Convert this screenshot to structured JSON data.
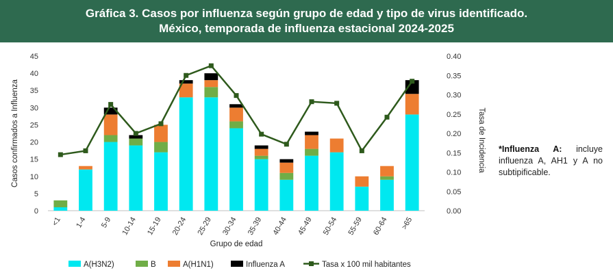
{
  "header": {
    "title_line1": "Gráfica 3. Casos por influenza según grupo de edad y tipo de virus identificado.",
    "title_line2": "México, temporada de influenza estacional 2024-2025"
  },
  "note": {
    "bold": "*Influenza A:",
    "text": " incluye influenza A, AH1 y A no subtipificable."
  },
  "colors": {
    "header_bg": "#2e6a4f",
    "A_H3N2": "#00e8f0",
    "B": "#70ad47",
    "A_H1N1": "#ed7d31",
    "Influenza_A": "#000000",
    "rate_line": "#2e5a1c"
  },
  "chart_data": {
    "type": "bar",
    "stacked": true,
    "xlabel": "Grupo de edad",
    "ylabel": "Casos confirmados a Influenza",
    "y2label": "Tasa de Incidencia",
    "ylim": [
      0,
      45
    ],
    "y2lim": [
      0,
      0.4
    ],
    "yticks": [
      "0",
      "5",
      "10",
      "15",
      "20",
      "25",
      "30",
      "35",
      "40",
      "45"
    ],
    "y2ticks": [
      "0.00",
      "0.05",
      "0.10",
      "0.15",
      "0.20",
      "0.25",
      "0.30",
      "0.35",
      "0.40"
    ],
    "categories": [
      "<1",
      "1-4",
      "5-9",
      "10-14",
      "15-19",
      "20-24",
      "25-29",
      "30-34",
      "35-39",
      "40-44",
      "45-49",
      "50-54",
      "55-59",
      "60-64",
      ">65"
    ],
    "series": [
      {
        "name": "A(H3N2)",
        "values": [
          1,
          12,
          20,
          19,
          17,
          33,
          33,
          24,
          15,
          9,
          16,
          17,
          7,
          9,
          28
        ]
      },
      {
        "name": "B",
        "values": [
          2,
          0,
          2,
          2,
          3,
          0,
          3,
          2,
          1,
          2,
          2,
          0,
          0,
          1,
          0
        ]
      },
      {
        "name": "A(H1N1)",
        "values": [
          0,
          1,
          6,
          0,
          5,
          4,
          2,
          4,
          2,
          3,
          4,
          4,
          3,
          3,
          6
        ]
      },
      {
        "name": "Influenza A",
        "values": [
          0,
          0,
          2,
          1,
          0,
          1,
          2,
          1,
          1,
          1,
          1,
          0,
          0,
          0,
          4
        ]
      }
    ],
    "line_series": {
      "name": "Tasa x 100 mil habitantes",
      "axis": "right",
      "values": [
        0.145,
        0.155,
        0.275,
        0.2,
        0.225,
        0.35,
        0.375,
        0.298,
        0.198,
        0.172,
        0.282,
        0.278,
        0.155,
        0.242,
        0.335
      ]
    },
    "grid": false,
    "legend_position": "bottom"
  }
}
